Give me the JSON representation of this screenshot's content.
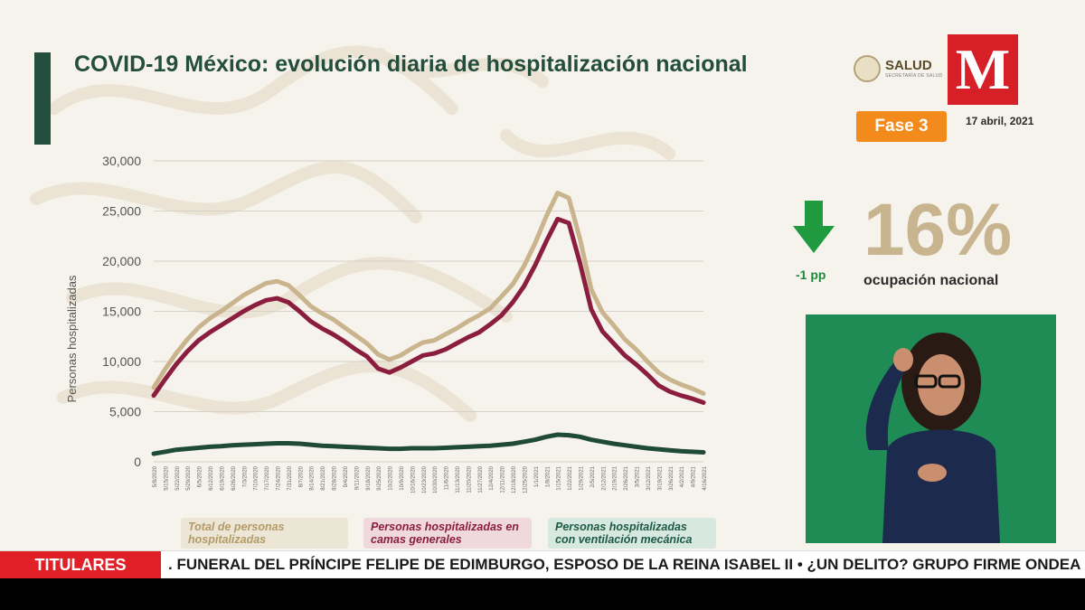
{
  "title": "COVID-19 México: evolución diaria de hospitalización nacional",
  "logos": {
    "salud": "SALUD",
    "salud_sub": "SECRETARÍA DE SALUD",
    "milenio": "M"
  },
  "fase": "Fase 3",
  "date": "17 abril, 2021",
  "indicator": {
    "arrow": "down-arrow-icon",
    "delta": "-1 pp",
    "value": "16%",
    "label": "ocupación nacional"
  },
  "ticker": {
    "label": "TITULARES",
    "text": ". FUNERAL DEL PRÍNCIPE FELIPE DE EDIMBURGO, ESPOSO DE LA REINA ISABEL II  •  ¿UN DELITO? GRUPO FIRME ONDEA BAN"
  },
  "colors": {
    "total": "#c9b48e",
    "generales": "#8b1e3f",
    "ventilacion": "#1f4a36",
    "title": "#234d3c",
    "fase": "#f28a1c"
  },
  "chart_data": {
    "type": "line",
    "ylabel": "Personas hospitalizadas",
    "ylim": [
      0,
      30000
    ],
    "yticks": [
      0,
      5000,
      10000,
      15000,
      20000,
      25000,
      30000
    ],
    "ytick_labels": [
      "0",
      "5,000",
      "10,000",
      "15,000",
      "20,000",
      "25,000",
      "30,000"
    ],
    "x_labels": [
      "5/8/2020",
      "5/15/2020",
      "5/22/2020",
      "5/29/2020",
      "6/5/2020",
      "6/12/2020",
      "6/19/2020",
      "6/26/2020",
      "7/3/2020",
      "7/10/2020",
      "7/17/2020",
      "7/24/2020",
      "7/31/2020",
      "8/7/2020",
      "8/14/2020",
      "8/21/2020",
      "8/28/2020",
      "9/4/2020",
      "9/11/2020",
      "9/18/2020",
      "9/25/2020",
      "10/2/2020",
      "10/9/2020",
      "10/16/2020",
      "10/23/2020",
      "10/30/2020",
      "11/6/2020",
      "11/13/2020",
      "11/20/2020",
      "11/27/2020",
      "12/4/2020",
      "12/11/2020",
      "12/18/2020",
      "12/25/2020",
      "1/1/2021",
      "1/8/2021",
      "1/15/2021",
      "1/22/2021",
      "1/29/2021",
      "2/5/2021",
      "2/12/2021",
      "2/19/2021",
      "2/26/2021",
      "3/5/2021",
      "3/12/2021",
      "3/19/2021",
      "3/26/2021",
      "4/2/2021",
      "4/9/2021",
      "4/16/2021"
    ],
    "grid": true,
    "legend_position": "bottom",
    "series": [
      {
        "name": "Total de personas hospitalizadas",
        "values": [
          7400,
          9200,
          10800,
          12200,
          13400,
          14300,
          15000,
          15800,
          16600,
          17200,
          17800,
          18000,
          17600,
          16600,
          15500,
          14800,
          14200,
          13400,
          12600,
          11800,
          10700,
          10200,
          10600,
          11300,
          11900,
          12100,
          12700,
          13300,
          14000,
          14600,
          15300,
          16500,
          17700,
          19500,
          21800,
          24500,
          26800,
          26300,
          22200,
          17200,
          14900,
          13600,
          12200,
          11200,
          10000,
          8900,
          8200,
          7700,
          7300,
          6800
        ],
        "color": "#c9b48e"
      },
      {
        "name": "Personas hospitalizadas en camas generales",
        "values": [
          6600,
          8200,
          9700,
          11000,
          12100,
          12900,
          13600,
          14300,
          15000,
          15600,
          16100,
          16300,
          15900,
          15000,
          14000,
          13300,
          12700,
          12000,
          11200,
          10500,
          9300,
          8900,
          9400,
          10000,
          10600,
          10800,
          11200,
          11800,
          12400,
          12900,
          13700,
          14600,
          15900,
          17500,
          19600,
          22000,
          24200,
          23800,
          19800,
          15200,
          13000,
          11800,
          10600,
          9700,
          8700,
          7600,
          7000,
          6600,
          6300,
          5900
        ],
        "color": "#8b1e3f"
      },
      {
        "name": "Personas hospitalizadas con ventilación mecánica",
        "values": [
          800,
          1000,
          1200,
          1300,
          1400,
          1500,
          1550,
          1650,
          1700,
          1750,
          1800,
          1850,
          1850,
          1800,
          1700,
          1600,
          1550,
          1500,
          1450,
          1400,
          1350,
          1300,
          1300,
          1350,
          1350,
          1350,
          1400,
          1450,
          1500,
          1550,
          1600,
          1700,
          1800,
          2000,
          2200,
          2500,
          2700,
          2650,
          2500,
          2200,
          2000,
          1800,
          1650,
          1500,
          1350,
          1250,
          1150,
          1050,
          1000,
          950
        ],
        "color": "#1f4a36"
      }
    ]
  }
}
